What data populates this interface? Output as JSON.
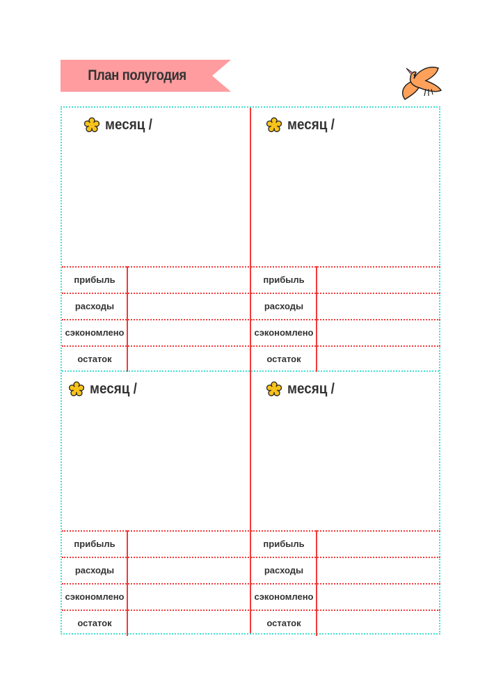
{
  "header": {
    "title": "План полугодия",
    "banner_color": "#ff9c9f"
  },
  "decor": {
    "bird_icon": "bird-icon",
    "bird_color": "#ffa15a",
    "flower_icon": "flower-icon",
    "flower_color": "#f7c21a"
  },
  "colors": {
    "grid_border": "#3ee0d0",
    "lines": "#f03a3a"
  },
  "months": [
    {
      "title": "месяц /",
      "rows": [
        {
          "label": "прибыль",
          "value": ""
        },
        {
          "label": "расходы",
          "value": ""
        },
        {
          "label": "сэкономлено",
          "value": ""
        },
        {
          "label": "остаток",
          "value": ""
        }
      ]
    },
    {
      "title": "месяц /",
      "rows": [
        {
          "label": "прибыль",
          "value": ""
        },
        {
          "label": "расходы",
          "value": ""
        },
        {
          "label": "сэкономлено",
          "value": ""
        },
        {
          "label": "остаток",
          "value": ""
        }
      ]
    },
    {
      "title": "месяц /",
      "rows": [
        {
          "label": "прибыль",
          "value": ""
        },
        {
          "label": "расходы",
          "value": ""
        },
        {
          "label": "сэкономлено",
          "value": ""
        },
        {
          "label": "остаток",
          "value": ""
        }
      ]
    },
    {
      "title": "месяц /",
      "rows": [
        {
          "label": "прибыль",
          "value": ""
        },
        {
          "label": "расходы",
          "value": ""
        },
        {
          "label": "сэкономлено",
          "value": ""
        },
        {
          "label": "остаток",
          "value": ""
        }
      ]
    }
  ]
}
